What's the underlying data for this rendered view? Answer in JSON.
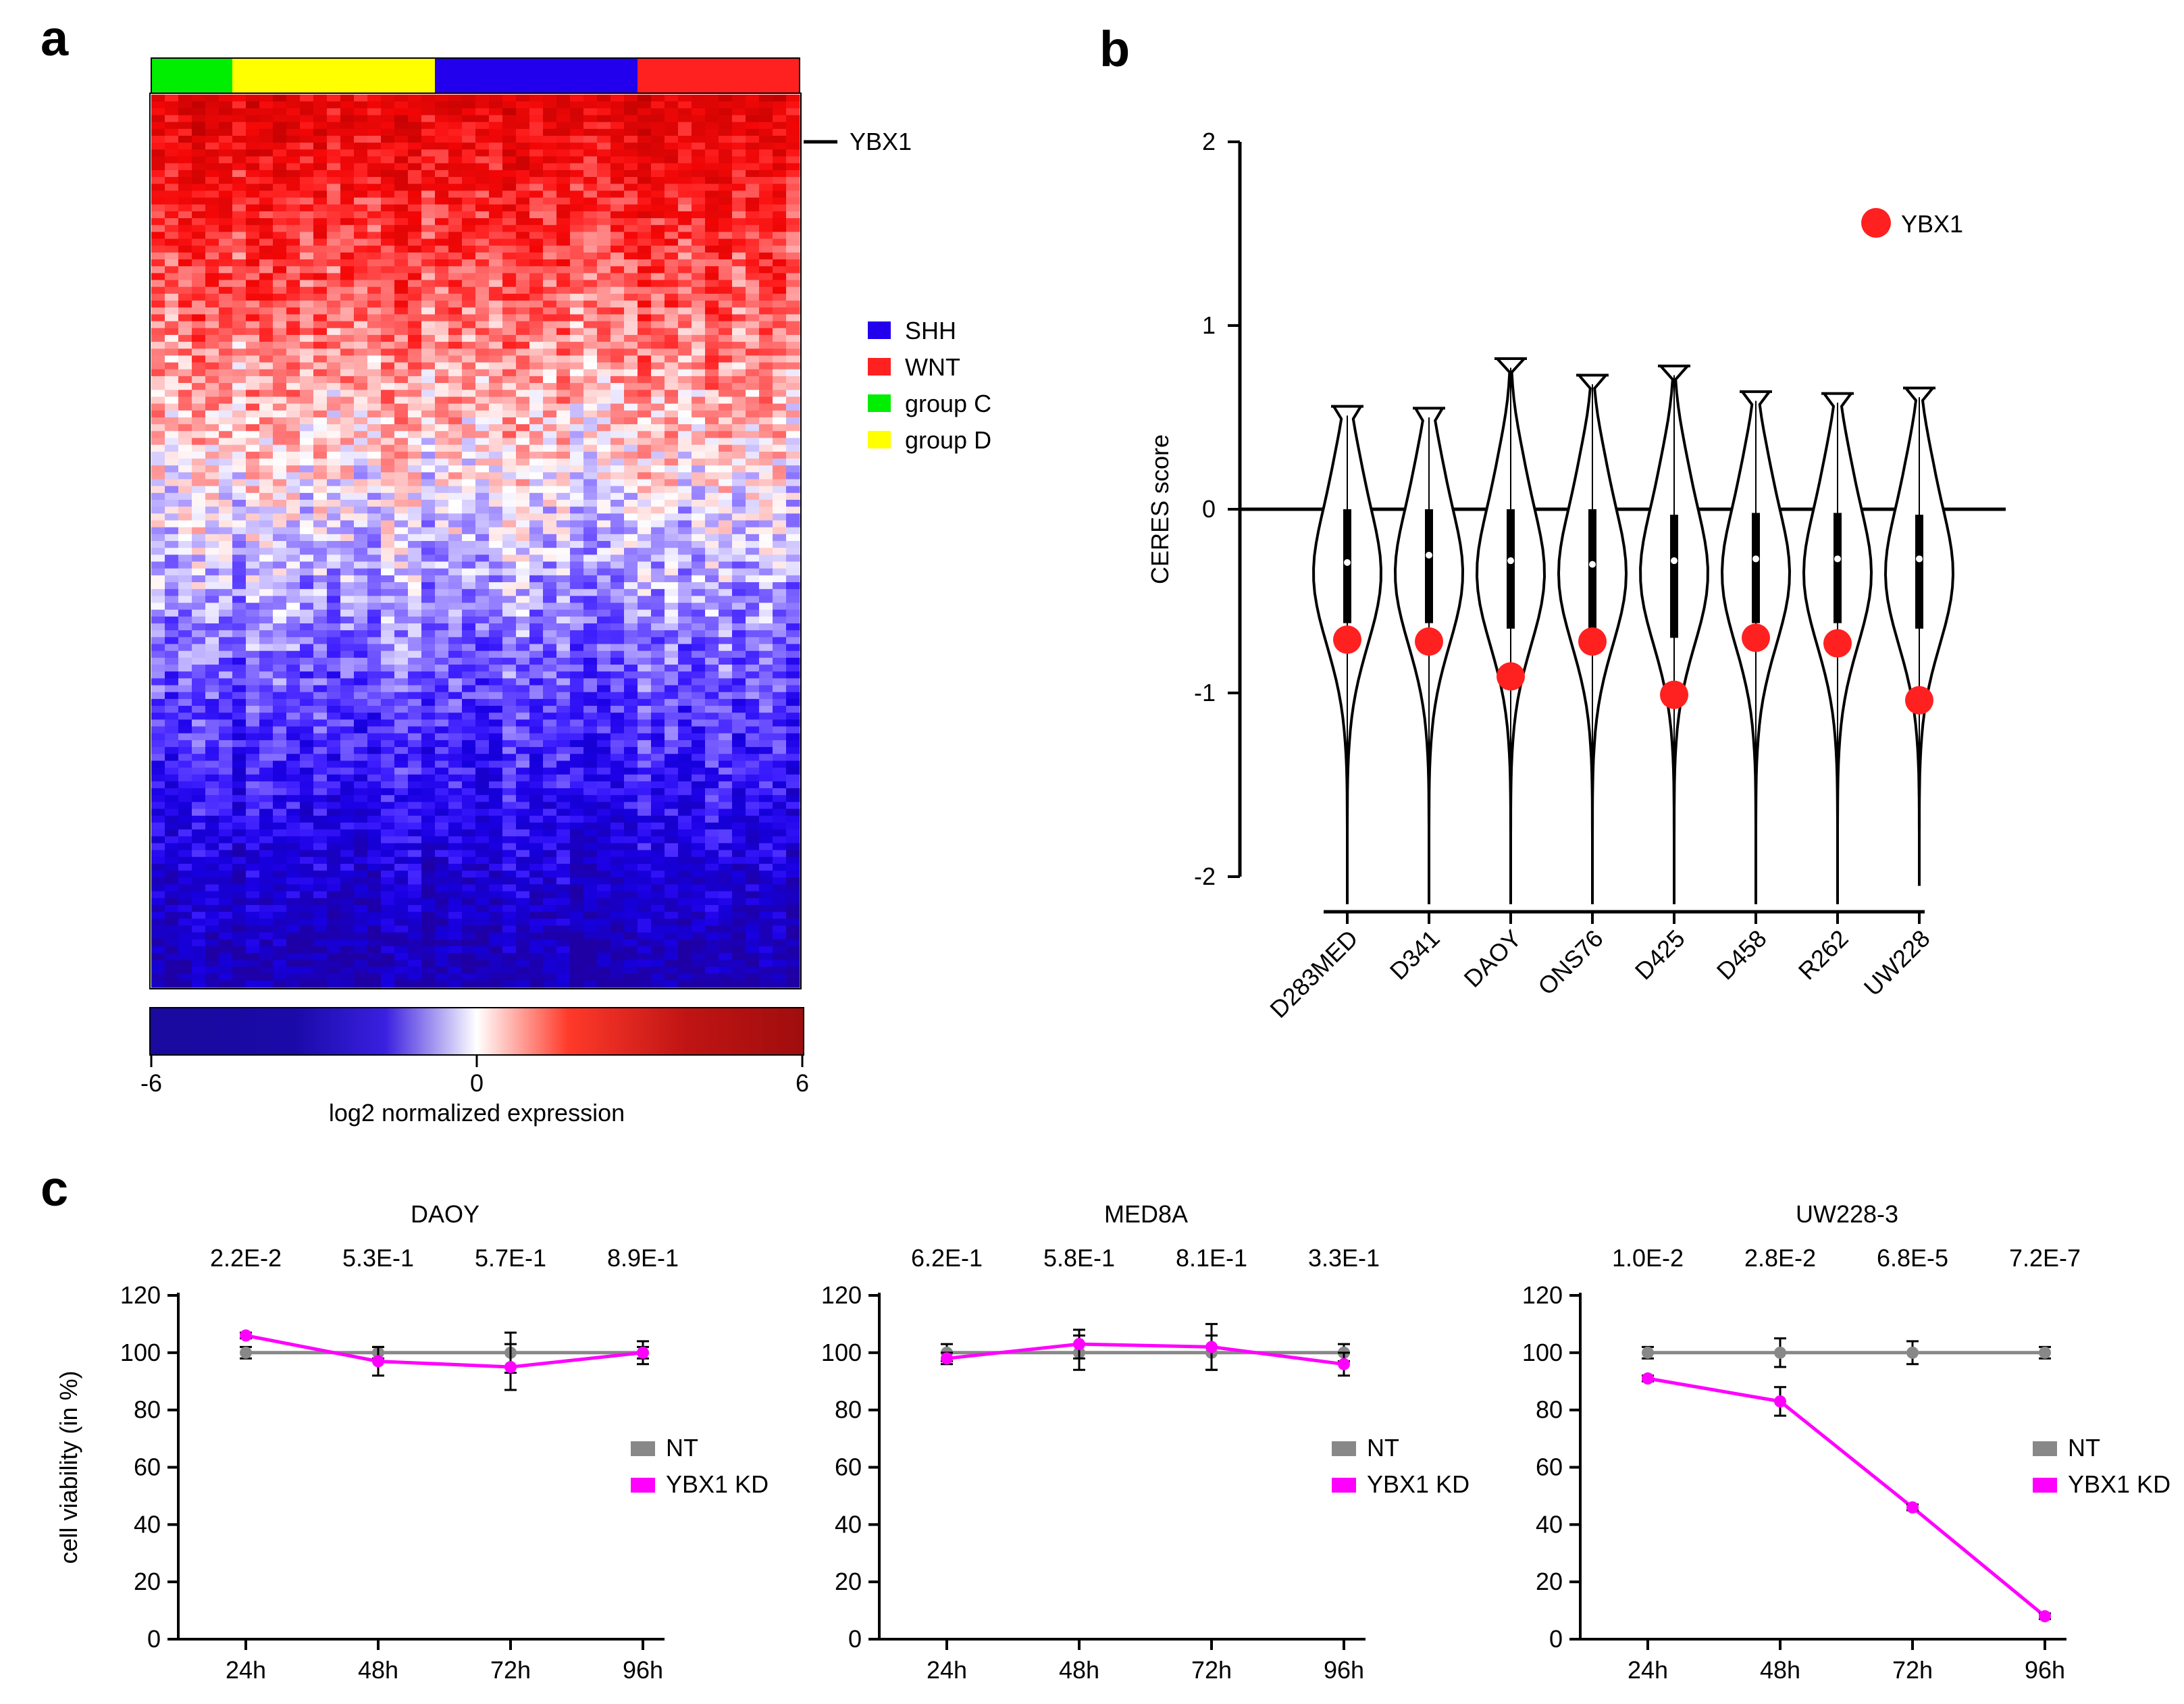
{
  "panel_labels": {
    "a": "a",
    "b": "b",
    "c": "c"
  },
  "heatmap": {
    "groups": [
      {
        "name": "group C",
        "color": "#00ee00",
        "n_samples": 6
      },
      {
        "name": "group D",
        "color": "#ffff00",
        "n_samples": 15
      },
      {
        "name": "SHH",
        "color": "#2200ee",
        "n_samples": 15
      },
      {
        "name": "WNT",
        "color": "#ff2020",
        "n_samples": 12
      }
    ],
    "highlight_gene": "YBX1",
    "legend": [
      {
        "label": "SHH",
        "color": "#2200ee"
      },
      {
        "label": "WNT",
        "color": "#ff2020"
      },
      {
        "label": "group C",
        "color": "#00ee00"
      },
      {
        "label": "group D",
        "color": "#ffff00"
      }
    ],
    "colorbar": {
      "min": -6,
      "max": 6,
      "ticks": [
        "-6",
        "0",
        "6"
      ],
      "label": "log2 normalized expression",
      "low_color": "#1a0a9e",
      "mid_color": "#ffffff",
      "high_color": "#a00d0d"
    }
  },
  "chart_data": [
    {
      "type": "violin",
      "ylabel": "CERES score",
      "ylim": [
        -2,
        2
      ],
      "yticks": [
        "2",
        "1",
        "0",
        "-1",
        "-2"
      ],
      "legend_label": "YBX1",
      "marker_color": "#ff2020",
      "categories": [
        "D283MED",
        "D341",
        "DAOY",
        "ONS76",
        "D425",
        "D458",
        "R262",
        "UW228"
      ],
      "violin_max": [
        0.56,
        0.55,
        0.82,
        0.73,
        0.78,
        0.64,
        0.63,
        0.66
      ],
      "violin_min": [
        -2.15,
        -2.15,
        -2.15,
        -2.15,
        -2.15,
        -2.15,
        -2.15,
        -2.05
      ],
      "medians": [
        -0.29,
        -0.25,
        -0.28,
        -0.3,
        -0.28,
        -0.27,
        -0.27,
        -0.27
      ],
      "q1": [
        -0.62,
        -0.62,
        -0.65,
        -0.65,
        -0.7,
        -0.62,
        -0.62,
        -0.65
      ],
      "q3": [
        0.0,
        0.0,
        0.0,
        0.0,
        -0.03,
        -0.02,
        -0.02,
        -0.03
      ],
      "ybx1": [
        -0.71,
        -0.72,
        -0.91,
        -0.72,
        -1.01,
        -0.7,
        -0.73,
        -1.04
      ]
    },
    {
      "type": "line",
      "title": "DAOY",
      "ylabel": "cell viability (in %)",
      "ylim": [
        0,
        120
      ],
      "yticks": [
        "0",
        "20",
        "40",
        "60",
        "80",
        "100",
        "120"
      ],
      "categories": [
        "24h",
        "48h",
        "72h",
        "96h"
      ],
      "pvalues": [
        "2.2E-2",
        "5.3E-1",
        "5.7E-1",
        "8.9E-1"
      ],
      "series": [
        {
          "name": "NT",
          "color": "#888888",
          "values": [
            100,
            100,
            100,
            100
          ],
          "errors": [
            2,
            2,
            7,
            2
          ]
        },
        {
          "name": "YBX1 KD",
          "color": "#ff00ff",
          "values": [
            106,
            97,
            95,
            100
          ],
          "errors": [
            1,
            5,
            8,
            4
          ]
        }
      ]
    },
    {
      "type": "line",
      "title": "MED8A",
      "ylabel": "",
      "ylim": [
        0,
        120
      ],
      "yticks": [
        "0",
        "20",
        "40",
        "60",
        "80",
        "100",
        "120"
      ],
      "categories": [
        "24h",
        "48h",
        "72h",
        "96h"
      ],
      "pvalues": [
        "6.2E-1",
        "5.8E-1",
        "8.1E-1",
        "3.3E-1"
      ],
      "series": [
        {
          "name": "NT",
          "color": "#888888",
          "values": [
            100,
            100,
            100,
            100
          ],
          "errors": [
            3,
            6,
            6,
            3
          ]
        },
        {
          "name": "YBX1 KD",
          "color": "#ff00ff",
          "values": [
            98,
            103,
            102,
            96
          ],
          "errors": [
            2,
            5,
            8,
            4
          ]
        }
      ]
    },
    {
      "type": "line",
      "title": "UW228-3",
      "ylabel": "",
      "ylim": [
        0,
        120
      ],
      "yticks": [
        "0",
        "20",
        "40",
        "60",
        "80",
        "100",
        "120"
      ],
      "categories": [
        "24h",
        "48h",
        "72h",
        "96h"
      ],
      "pvalues": [
        "1.0E-2",
        "2.8E-2",
        "6.8E-5",
        "7.2E-7"
      ],
      "series": [
        {
          "name": "NT",
          "color": "#888888",
          "values": [
            100,
            100,
            100,
            100
          ],
          "errors": [
            2,
            5,
            4,
            2
          ]
        },
        {
          "name": "YBX1 KD",
          "color": "#ff00ff",
          "values": [
            91,
            83,
            46,
            8
          ],
          "errors": [
            1,
            5,
            1,
            1
          ]
        }
      ]
    }
  ]
}
